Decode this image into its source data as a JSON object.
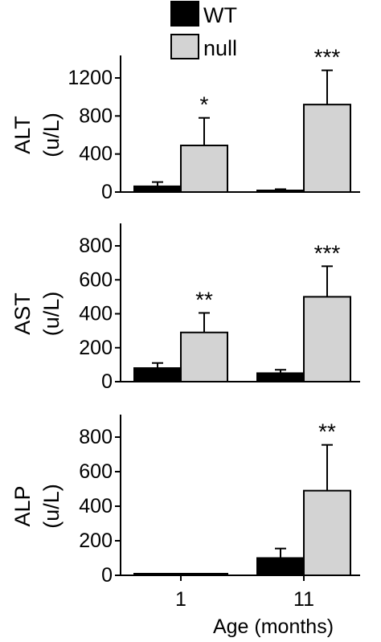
{
  "legend": [
    {
      "label": "WT",
      "color": "#000000"
    },
    {
      "label": "null",
      "color": "#d3d3d3"
    }
  ],
  "x_axis": {
    "categories": [
      "1",
      "11"
    ],
    "title": "Age (months)"
  },
  "chart_data": [
    {
      "type": "bar",
      "ylabel_lines": [
        "ALT",
        "(u/L)"
      ],
      "ylim": [
        0,
        1200
      ],
      "yticks": [
        0,
        400,
        800,
        1200
      ],
      "categories": [
        "1",
        "11"
      ],
      "series": [
        {
          "name": "WT",
          "color": "#000000",
          "values": [
            60,
            15
          ],
          "errors": [
            45,
            15
          ]
        },
        {
          "name": "null",
          "color": "#d3d3d3",
          "values": [
            490,
            920
          ],
          "errors": [
            290,
            360
          ]
        }
      ],
      "annotations": [
        {
          "category": "1",
          "series": "null",
          "text": "*"
        },
        {
          "category": "11",
          "series": "null",
          "text": "***"
        }
      ]
    },
    {
      "type": "bar",
      "ylabel_lines": [
        "AST",
        "(u/L)"
      ],
      "ylim": [
        0,
        800
      ],
      "yticks": [
        0,
        200,
        400,
        600,
        800
      ],
      "categories": [
        "1",
        "11"
      ],
      "series": [
        {
          "name": "WT",
          "color": "#000000",
          "values": [
            80,
            50
          ],
          "errors": [
            30,
            20
          ]
        },
        {
          "name": "null",
          "color": "#d3d3d3",
          "values": [
            290,
            500
          ],
          "errors": [
            115,
            180
          ]
        }
      ],
      "annotations": [
        {
          "category": "1",
          "series": "null",
          "text": "**"
        },
        {
          "category": "11",
          "series": "null",
          "text": "***"
        }
      ]
    },
    {
      "type": "bar",
      "ylabel_lines": [
        "ALP",
        "(u/L)"
      ],
      "ylim": [
        0,
        800
      ],
      "yticks": [
        0,
        200,
        400,
        600,
        800
      ],
      "categories": [
        "1",
        "11"
      ],
      "series": [
        {
          "name": "WT",
          "color": "#000000",
          "values": [
            0,
            100
          ],
          "errors": [
            0,
            55
          ]
        },
        {
          "name": "null",
          "color": "#d3d3d3",
          "values": [
            0,
            490
          ],
          "errors": [
            0,
            265
          ]
        }
      ],
      "annotations": [
        {
          "category": "11",
          "series": "null",
          "text": "**"
        }
      ]
    }
  ]
}
